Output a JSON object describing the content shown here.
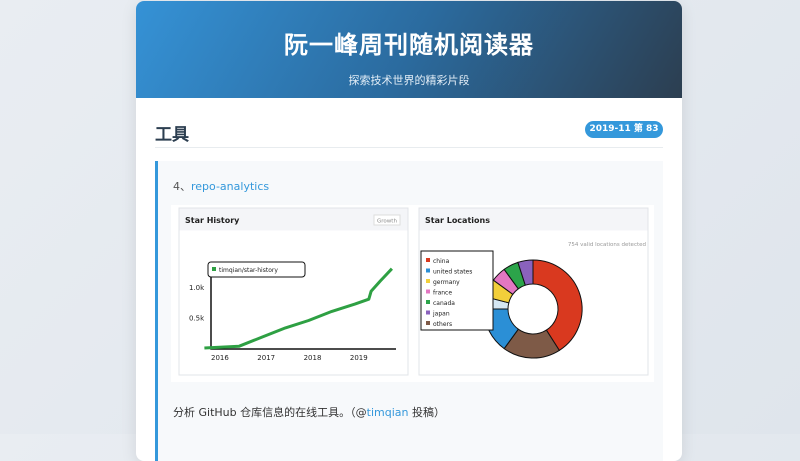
{
  "header": {
    "title": "阮一峰周刊随机阅读器",
    "subtitle": "探索技术世界的精彩片段"
  },
  "section": {
    "title": "工具",
    "badge": "2019-11 第 83 期"
  },
  "article": {
    "number": "4、",
    "link": "repo-analytics",
    "desc_prefix": "分析 GitHub 仓库信息的在线工具。（@",
    "desc_author": "timqian",
    "desc_suffix": " 投稿）",
    "accent": "#3498db"
  },
  "image": {
    "star_history": {
      "title": "Star History",
      "button": "Growth",
      "legend": "timqian/star-history",
      "color": "#2ea043",
      "y_ticks": [
        "0.5k",
        "1.0k"
      ],
      "x_ticks": [
        "2016",
        "2017",
        "2018",
        "2019"
      ],
      "points": [
        [
          2015.75,
          0
        ],
        [
          2016.5,
          30
        ],
        [
          2017,
          180
        ],
        [
          2017.5,
          330
        ],
        [
          2018,
          450
        ],
        [
          2018.5,
          600
        ],
        [
          2019,
          720
        ],
        [
          2019.3,
          800
        ],
        [
          2019.35,
          930
        ],
        [
          2019.55,
          1100
        ],
        [
          2019.8,
          1300
        ]
      ]
    },
    "star_locations": {
      "title": "Star Locations",
      "note": "754 valid locations detected",
      "slices": [
        {
          "label": "china",
          "value": 41,
          "color": "#d9391f"
        },
        {
          "label": "others",
          "value": 19,
          "color": "#7e5a47"
        },
        {
          "label": "united states",
          "value": 15,
          "color": "#2b8fd6"
        },
        {
          "label": "",
          "value": 4,
          "color": "#d5e7f3"
        },
        {
          "label": "germany",
          "value": 6,
          "color": "#f2cf3a"
        },
        {
          "label": "france",
          "value": 5,
          "color": "#e377c2"
        },
        {
          "label": "canada",
          "value": 5,
          "color": "#2ca44a"
        },
        {
          "label": "japan",
          "value": 5,
          "color": "#8a62bd"
        }
      ],
      "legend_order": [
        "china",
        "united states",
        "germany",
        "france",
        "canada",
        "japan",
        "others"
      ]
    }
  }
}
